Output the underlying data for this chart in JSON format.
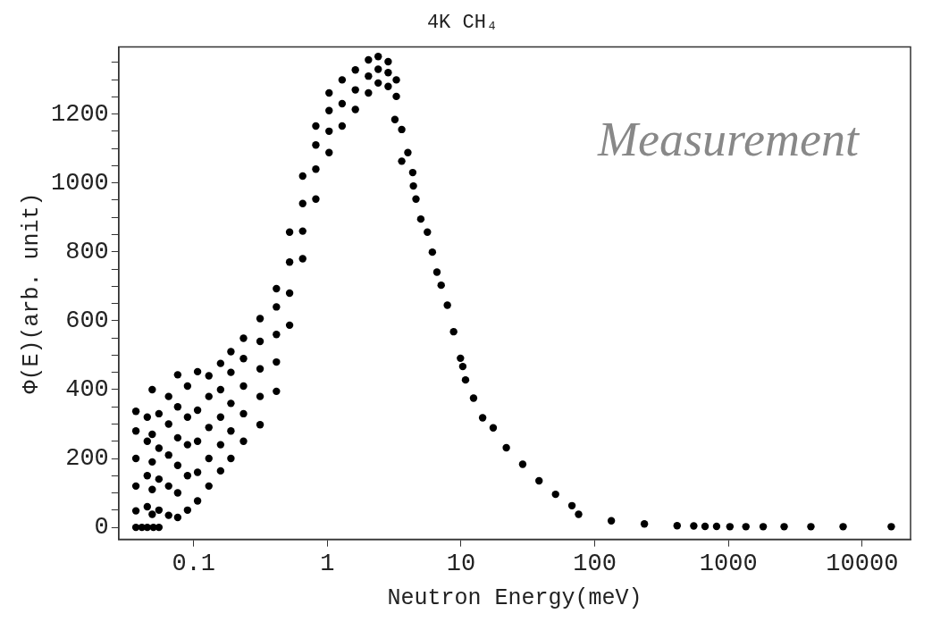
{
  "chart_data": {
    "type": "scatter",
    "title": "4K CH₄",
    "xlabel": "Neutron Energy(meV)",
    "ylabel": "Φ(E)(arb. unit)",
    "annotations": [
      "Measurement"
    ],
    "log": "x",
    "grid": false,
    "legend": false,
    "marker": "circle",
    "xlim": [
      0.0275,
      23000
    ],
    "xticks": [
      0.1,
      1,
      10,
      100,
      1000,
      10000
    ],
    "ylim": [
      -35,
      1395
    ],
    "yticks": [
      0,
      {
        "value": 50,
        "label": null
      },
      {
        "value": 100,
        "label": null
      },
      {
        "value": 150,
        "label": null
      },
      200,
      {
        "value": 250,
        "label": null
      },
      {
        "value": 300,
        "label": null
      },
      {
        "value": 350,
        "label": null
      },
      400,
      {
        "value": 450,
        "label": null
      },
      {
        "value": 500,
        "label": null
      },
      {
        "value": 550,
        "label": null
      },
      600,
      {
        "value": 650,
        "label": null
      },
      {
        "value": 700,
        "label": null
      },
      {
        "value": 750,
        "label": null
      },
      800,
      {
        "value": 850,
        "label": null
      },
      {
        "value": 900,
        "label": null
      },
      {
        "value": 950,
        "label": null
      },
      1000,
      {
        "value": 1050,
        "label": null
      },
      {
        "value": 1100,
        "label": null
      },
      {
        "value": 1150,
        "label": null
      },
      1200,
      {
        "value": 1250,
        "label": null
      },
      {
        "value": 1300,
        "label": null
      },
      {
        "value": 1350,
        "label": null
      }
    ],
    "series": [
      {
        "color": "#000000",
        "x": [
          0.037,
          0.037,
          0.037,
          0.037,
          0.037,
          0.037,
          0.041,
          0.045,
          0.045,
          0.045,
          0.045,
          0.045,
          0.049,
          0.049,
          0.049,
          0.049,
          0.049,
          0.05,
          0.055,
          0.055,
          0.055,
          0.055,
          0.055,
          0.065,
          0.065,
          0.065,
          0.065,
          0.065,
          0.076,
          0.076,
          0.076,
          0.076,
          0.076,
          0.076,
          0.09,
          0.09,
          0.09,
          0.09,
          0.09,
          0.107,
          0.107,
          0.107,
          0.107,
          0.107,
          0.13,
          0.13,
          0.13,
          0.13,
          0.13,
          0.159,
          0.159,
          0.159,
          0.159,
          0.159,
          0.19,
          0.19,
          0.19,
          0.19,
          0.19,
          0.236,
          0.236,
          0.236,
          0.236,
          0.236,
          0.314,
          0.314,
          0.314,
          0.314,
          0.314,
          0.416,
          0.416,
          0.416,
          0.416,
          0.416,
          0.522,
          0.522,
          0.522,
          0.522,
          0.654,
          0.654,
          0.654,
          0.654,
          0.82,
          0.82,
          0.82,
          0.82,
          1.03,
          1.03,
          1.03,
          1.03,
          1.29,
          1.29,
          1.29,
          1.62,
          1.62,
          1.62,
          2.03,
          2.03,
          2.03,
          2.4,
          2.4,
          2.4,
          2.85,
          2.85,
          2.85,
          3.28,
          3.28,
          3.2,
          3.6,
          3.6,
          4.0,
          4.35,
          4.4,
          4.6,
          5.0,
          5.6,
          6.1,
          6.6,
          7.1,
          7.9,
          8.8,
          9.9,
          10.3,
          10.8,
          12.4,
          14.5,
          17.4,
          21.8,
          28.9,
          38.3,
          50.9,
          67.5,
          75.7,
          133,
          235,
          413,
          550,
          668,
          815,
          1025,
          1350,
          1818,
          2608,
          4134,
          7200,
          16500
        ],
        "values": [
          0,
          48,
          120,
          200,
          280,
          337,
          0,
          0,
          60,
          150,
          250,
          320,
          38,
          110,
          190,
          270,
          400,
          0,
          0,
          50,
          140,
          230,
          330,
          35,
          120,
          210,
          300,
          380,
          29,
          100,
          180,
          260,
          350,
          443,
          50,
          150,
          240,
          320,
          410,
          77,
          160,
          250,
          340,
          452,
          120,
          200,
          290,
          380,
          440,
          164,
          240,
          320,
          400,
          476,
          200,
          280,
          360,
          450,
          510,
          250,
          330,
          410,
          490,
          549,
          298,
          380,
          460,
          540,
          606,
          395,
          480,
          560,
          640,
          693,
          587,
          680,
          770,
          857,
          780,
          860,
          940,
          1020,
          953,
          1040,
          1110,
          1165,
          1088,
          1150,
          1210,
          1261,
          1165,
          1230,
          1299,
          1213,
          1270,
          1328,
          1261,
          1310,
          1357,
          1290,
          1330,
          1367,
          1280,
          1320,
          1352,
          1251,
          1299,
          1184,
          1155,
          1063,
          1088,
          1030,
          991,
          953,
          895,
          857,
          799,
          741,
          703,
          645,
          568,
          491,
          467,
          428,
          375,
          318,
          289,
          231,
          183,
          135,
          96,
          63,
          38,
          19,
          10,
          5,
          4,
          3,
          3,
          2,
          2,
          2,
          2,
          2,
          2,
          2
        ]
      }
    ]
  }
}
